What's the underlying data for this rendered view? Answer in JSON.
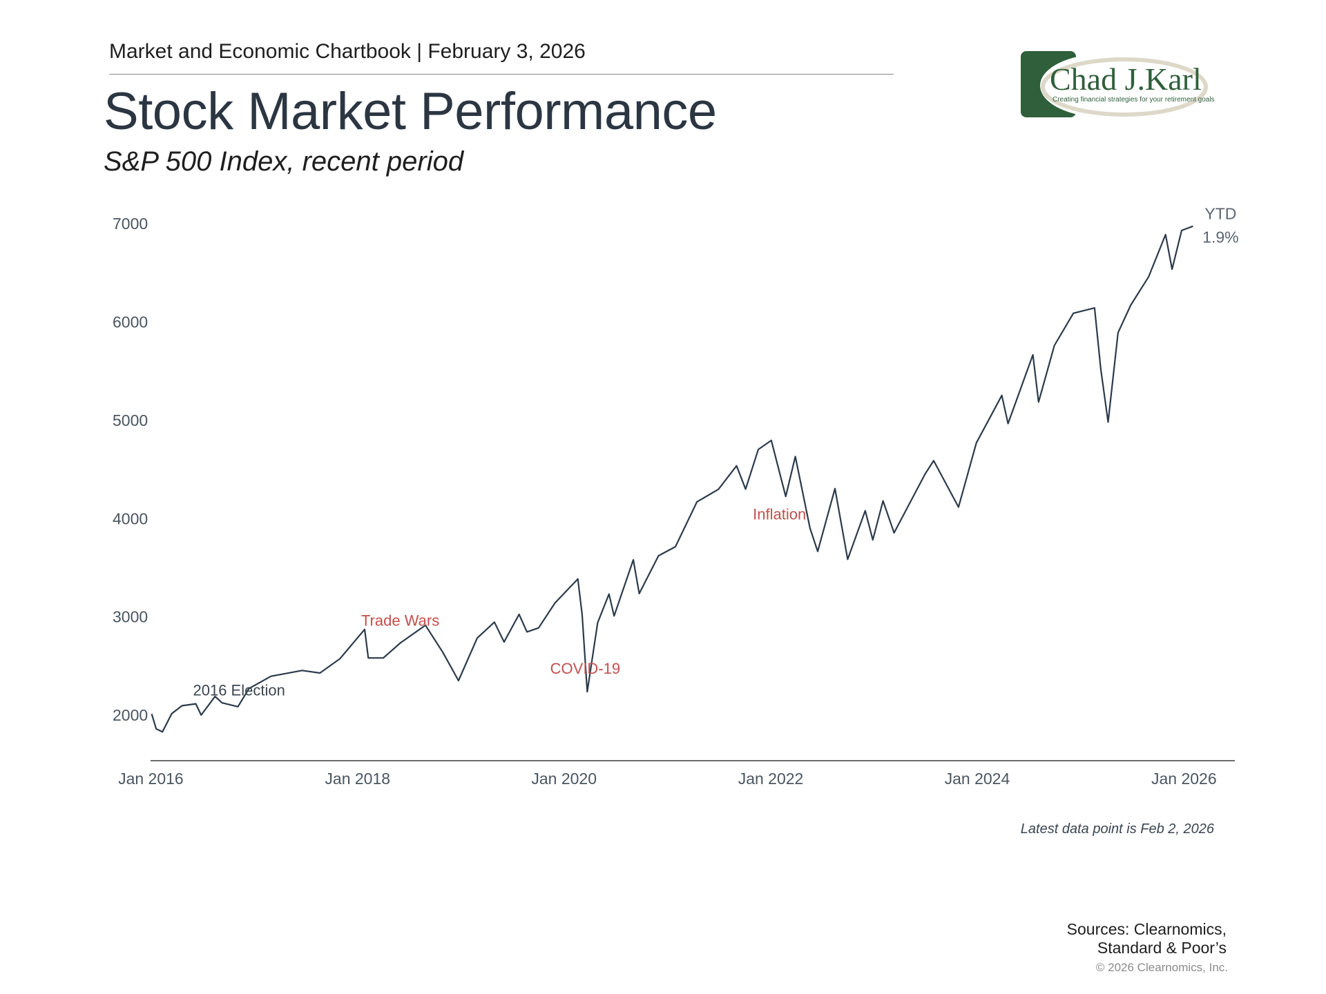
{
  "header": {
    "chartbook": "Market and Economic Chartbook | February 3, 2026",
    "title": "Stock Market Performance",
    "subtitle": "S&P 500 Index, recent period"
  },
  "logo": {
    "name": "Chad J.Karl",
    "tagline": "Creating financial strategies for your retirement goals",
    "brand_color": "#2f5f3b"
  },
  "chart_data": {
    "type": "line",
    "x_tick_labels": [
      "Jan 2016",
      "Jan 2018",
      "Jan 2020",
      "Jan 2022",
      "Jan 2024",
      "Jan 2026"
    ],
    "y_tick_labels": [
      "2000",
      "3000",
      "4000",
      "5000",
      "6000",
      "7000"
    ],
    "x_range": [
      "2015-12-31",
      "2026-06-30"
    ],
    "y_range": [
      1550,
      7100
    ],
    "line_color": "#2b3a4a",
    "annotation_color": "#c0504d",
    "grid": false,
    "series": [
      {
        "x": [
          "2016-01-04",
          "2016-01-20",
          "2016-02-11",
          "2016-03-15",
          "2016-04-20",
          "2016-06-08",
          "2016-06-27",
          "2016-08-15",
          "2016-09-09",
          "2016-11-04",
          "2016-12-13",
          "2017-03-01",
          "2017-06-19",
          "2017-08-21",
          "2017-10-31",
          "2018-01-26",
          "2018-02-08",
          "2018-04-02",
          "2018-06-01",
          "2018-08-29",
          "2018-10-29",
          "2018-12-24",
          "2019-02-28",
          "2019-04-30",
          "2019-06-03",
          "2019-07-26",
          "2019-08-23",
          "2019-10-03",
          "2019-11-30",
          "2020-02-19",
          "2020-03-05",
          "2020-03-23",
          "2020-04-29",
          "2020-06-08",
          "2020-06-26",
          "2020-09-02",
          "2020-09-23",
          "2020-11-30",
          "2021-01-29",
          "2021-04-15",
          "2021-06-30",
          "2021-09-02",
          "2021-10-04",
          "2021-11-18",
          "2022-01-03",
          "2022-02-23",
          "2022-03-29",
          "2022-05-20",
          "2022-06-16",
          "2022-08-16",
          "2022-09-30",
          "2022-12-01",
          "2022-12-28",
          "2023-02-02",
          "2023-03-13",
          "2023-06-30",
          "2023-07-31",
          "2023-10-27",
          "2023-12-29",
          "2024-03-28",
          "2024-04-19",
          "2024-07-16",
          "2024-08-05",
          "2024-09-30",
          "2024-12-06",
          "2025-02-19",
          "2025-03-13",
          "2025-04-08",
          "2025-05-13",
          "2025-06-27",
          "2025-08-29",
          "2025-10-28",
          "2025-11-20",
          "2025-12-24",
          "2026-02-02"
        ],
        "y": [
          2012,
          1860,
          1829,
          2015,
          2095,
          2115,
          2000,
          2190,
          2125,
          2085,
          2271,
          2395,
          2454,
          2428,
          2575,
          2872,
          2581,
          2581,
          2734,
          2914,
          2641,
          2351,
          2784,
          2946,
          2744,
          3025,
          2847,
          2887,
          3141,
          3386,
          3024,
          2237,
          2940,
          3232,
          3009,
          3580,
          3237,
          3622,
          3714,
          4170,
          4298,
          4537,
          4300,
          4704,
          4796,
          4225,
          4631,
          3901,
          3666,
          4305,
          3585,
          4080,
          3783,
          4180,
          3855,
          4450,
          4589,
          4117,
          4770,
          5254,
          4967,
          5667,
          5186,
          5762,
          6090,
          6144,
          5521,
          4982,
          5892,
          6173,
          6460,
          6890,
          6538,
          6932,
          6976
        ]
      }
    ],
    "annotations": [
      {
        "text": "2016 Election",
        "x": "2016-11-08",
        "y": 2200,
        "color": "#3a4550"
      },
      {
        "text": "Trade Wars",
        "x": "2018-06-01",
        "y": 2910,
        "color": "#c0504d"
      },
      {
        "text": "COVID-19",
        "x": "2020-03-16",
        "y": 2420,
        "color": "#c0504d"
      },
      {
        "text": "Inflation",
        "x": "2022-02-01",
        "y": 3990,
        "color": "#c0504d"
      }
    ],
    "end_label": {
      "line1": "YTD",
      "line2": "1.9%"
    }
  },
  "footer": {
    "latest": "Latest data point is Feb 2, 2026",
    "sources_line1": "Sources: Clearnomics,",
    "sources_line2": "Standard & Poor’s",
    "copyright": "© 2026 Clearnomics, Inc."
  }
}
